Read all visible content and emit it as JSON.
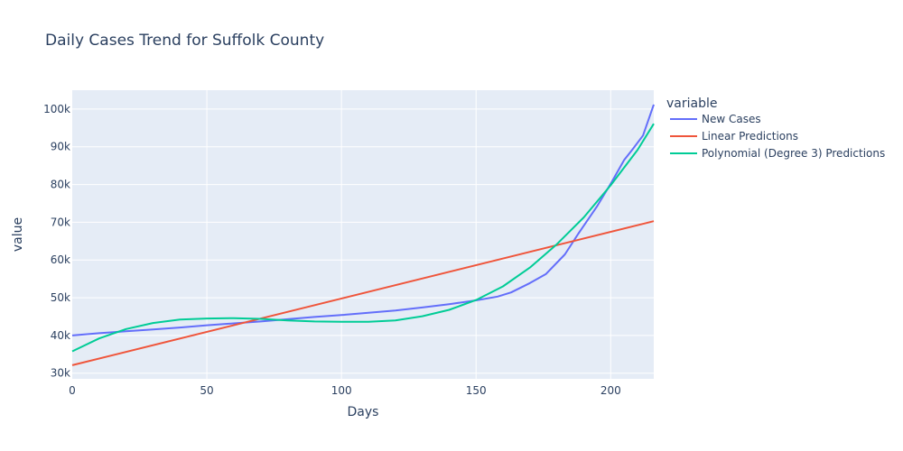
{
  "chart_data": {
    "type": "line",
    "title": "Daily Cases Trend for Suffolk County",
    "xlabel": "Days",
    "ylabel": "value",
    "xlim": [
      0,
      216
    ],
    "ylim": [
      28500,
      105000
    ],
    "x_ticks": [
      0,
      50,
      100,
      150,
      200
    ],
    "y_ticks": [
      30000,
      40000,
      50000,
      60000,
      70000,
      80000,
      90000,
      100000
    ],
    "y_tick_labels": [
      "30k",
      "40k",
      "50k",
      "60k",
      "70k",
      "80k",
      "90k",
      "100k"
    ],
    "grid": true,
    "legend_title": "variable",
    "legend_position": "right",
    "series": [
      {
        "name": "New Cases",
        "color": "#636efa",
        "x": [
          0,
          10,
          20,
          30,
          40,
          50,
          60,
          70,
          80,
          90,
          100,
          110,
          120,
          130,
          140,
          150,
          158,
          163,
          170,
          176,
          183,
          188,
          195,
          200,
          205,
          208,
          212,
          216
        ],
        "y": [
          40000,
          40600,
          41100,
          41600,
          42100,
          42700,
          43200,
          43700,
          44300,
          44900,
          45400,
          46000,
          46600,
          47400,
          48300,
          49300,
          50300,
          51400,
          53900,
          56300,
          61500,
          67000,
          74300,
          80200,
          86500,
          89200,
          93000,
          101200
        ]
      },
      {
        "name": "Linear Predictions",
        "color": "#ef553b",
        "x": [
          0,
          216
        ],
        "y": [
          32100,
          70300
        ]
      },
      {
        "name": "Polynomial (Degree 3) Predictions",
        "color": "#00cc96",
        "x": [
          0,
          10,
          20,
          30,
          40,
          50,
          60,
          70,
          80,
          90,
          100,
          110,
          120,
          130,
          140,
          150,
          160,
          170,
          180,
          190,
          200,
          210,
          216
        ],
        "y": [
          35800,
          39200,
          41700,
          43300,
          44200,
          44500,
          44600,
          44400,
          44000,
          43700,
          43600,
          43600,
          44000,
          45100,
          46800,
          49400,
          53000,
          58000,
          64200,
          71300,
          79800,
          89200,
          96100
        ]
      }
    ]
  }
}
